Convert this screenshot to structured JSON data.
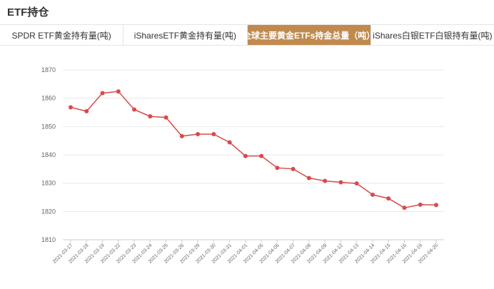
{
  "page": {
    "title": "ETF持仓"
  },
  "tabs": [
    {
      "label": "SPDR ETF黄金持有量(吨)",
      "active": false
    },
    {
      "label": "iSharesETF黄金持有量(吨)",
      "active": false
    },
    {
      "label": "全球主要黄金ETFs持金总量（吨）",
      "active": true
    },
    {
      "label": "iShares白银ETF白银持有量(吨)",
      "active": false
    }
  ],
  "colors": {
    "accent": "#c08a4f",
    "line": "#d94a4a",
    "grid": "#e8e8e8"
  },
  "chart_data": {
    "type": "line",
    "x": [
      "2021-03-17",
      "2021-03-18",
      "2021-03-19",
      "2021-03-22",
      "2021-03-23",
      "2021-03-24",
      "2021-03-25",
      "2021-03-26",
      "2021-03-29",
      "2021-03-30",
      "2021-03-31",
      "2021-04-01",
      "2021-04-05",
      "2021-04-06",
      "2021-04-07",
      "2021-04-08",
      "2021-04-09",
      "2021-04-12",
      "2021-04-13",
      "2021-04-14",
      "2021-04-15",
      "2021-04-16",
      "2021-04-19",
      "2021-04-20"
    ],
    "series": [
      {
        "values": [
          1856.8,
          1855.4,
          1861.8,
          1862.4,
          1856.0,
          1853.6,
          1853.2,
          1846.6,
          1847.3,
          1847.3,
          1844.4,
          1839.6,
          1839.6,
          1835.4,
          1835.0,
          1831.8,
          1830.8,
          1830.3,
          1829.9,
          1825.9,
          1824.6,
          1821.3,
          1822.4,
          1822.3
        ]
      }
    ],
    "yticks": [
      1810,
      1820,
      1830,
      1840,
      1850,
      1860,
      1870
    ],
    "ylim": [
      1810,
      1870
    ],
    "grid": true,
    "title": "",
    "xlabel": "",
    "ylabel": ""
  }
}
